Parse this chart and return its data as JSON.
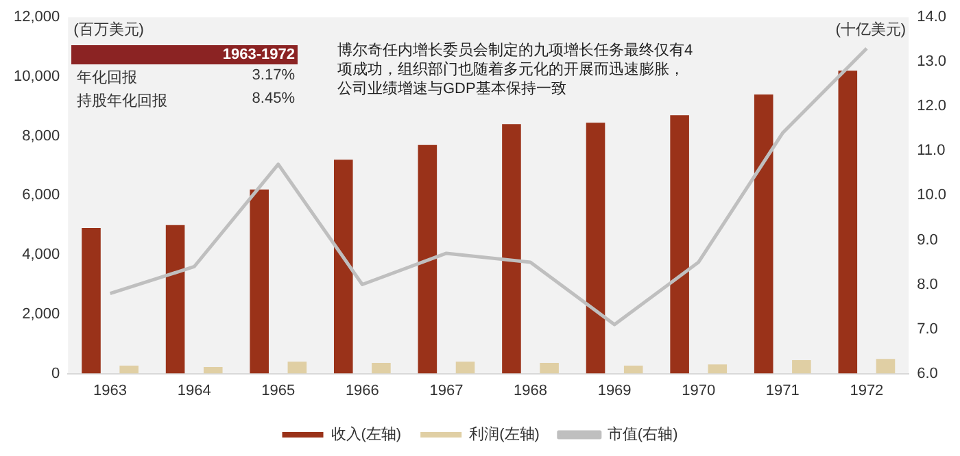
{
  "chart_data": {
    "type": "bar",
    "ylabel": "(百万美元)",
    "y2label": "(十亿美元)",
    "annotations": [
      "1963-1972",
      "年化回报 3.17%",
      "持股年化回报 8.45%",
      "博尔奇任内增长委员会制定的九项增长任务最终仅有4项成功，组织部门也随着多元化的开展而迅速膨胀，公司业绩增速与GDP基本保持一致"
    ],
    "categories": [
      "1963",
      "1964",
      "1965",
      "1966",
      "1967",
      "1968",
      "1969",
      "1970",
      "1971",
      "1972"
    ],
    "series": [
      {
        "name": "收入(左轴)",
        "color": "#9a3219",
        "values": [
          4900,
          5000,
          6200,
          7200,
          7700,
          8400,
          8450,
          8700,
          9400,
          10200
        ]
      },
      {
        "name": "利润(左轴)",
        "color": "#e0cfa4",
        "values": [
          270,
          220,
          400,
          360,
          400,
          360,
          270,
          310,
          450,
          490
        ]
      },
      {
        "name": "市值(右轴)",
        "type": "line",
        "axis": "y2",
        "color": "#bfbfbf",
        "values": [
          7.8,
          8.4,
          10.7,
          8.0,
          8.7,
          8.5,
          7.1,
          8.5,
          11.4,
          13.3
        ]
      }
    ],
    "ylim": [
      0,
      12000
    ],
    "yticks": [
      0,
      {
        "value": 2000,
        "label": "2,000"
      },
      {
        "value": 4000,
        "label": "4,000"
      },
      {
        "value": 6000,
        "label": "6,000"
      },
      {
        "value": 8000,
        "label": "8,000"
      },
      {
        "value": 10000,
        "label": "10,000"
      },
      {
        "value": 12000,
        "label": "12,000"
      }
    ],
    "y2lim": [
      6,
      14
    ],
    "y2ticks": [
      {
        "value": 6,
        "label": "6.0"
      },
      {
        "value": 7,
        "label": "7.0"
      },
      {
        "value": 8,
        "label": "8.0"
      },
      {
        "value": 9,
        "label": "9.0"
      },
      {
        "value": 10,
        "label": "10.0"
      },
      {
        "value": 11,
        "label": "11.0"
      },
      {
        "value": 12,
        "label": "12.0"
      },
      {
        "value": 13,
        "label": "13.0"
      },
      {
        "value": 14,
        "label": "14.0"
      }
    ],
    "grid": false,
    "legend": "bottom"
  }
}
